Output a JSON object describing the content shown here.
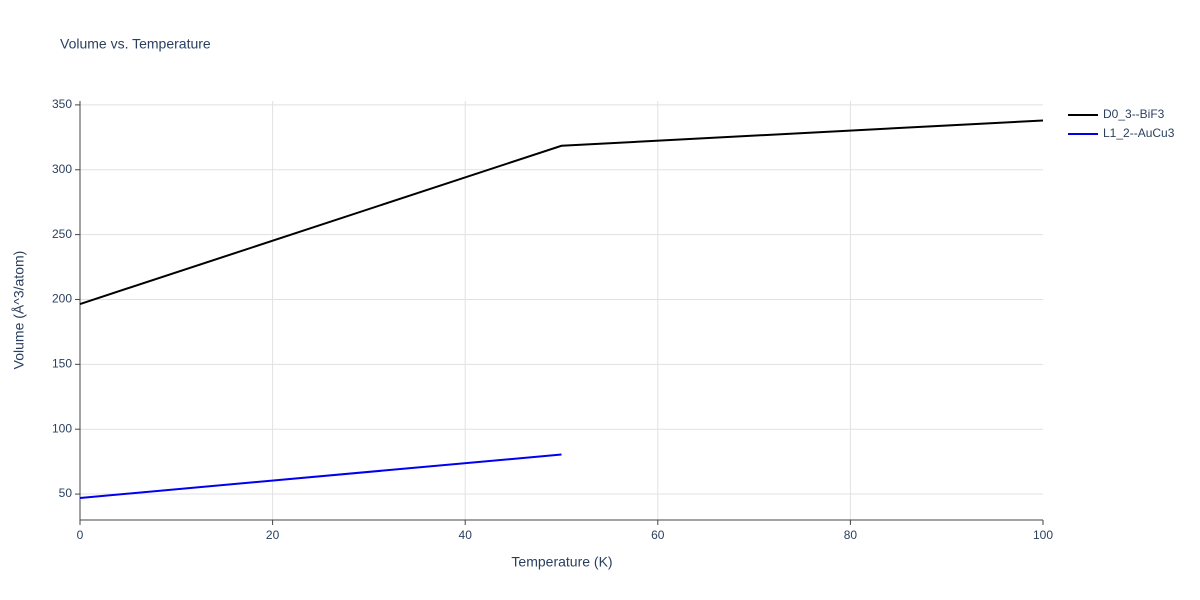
{
  "chart_data": {
    "type": "line",
    "title": "Volume vs. Temperature",
    "x_label": "Temperature (K)",
    "y_label": "Volume (Å^3/atom)",
    "series": [
      {
        "name": "D0_3--BiF3",
        "color": "#000000",
        "x": [
          0,
          50,
          100
        ],
        "values": [
          196.5,
          318.5,
          338
        ]
      },
      {
        "name": "L1_2--AuCu3",
        "color": "#0000ee",
        "x": [
          0,
          50
        ],
        "values": [
          47,
          80.5
        ]
      }
    ],
    "xlim": [
      0,
      100
    ],
    "xticks": [
      0,
      20,
      40,
      60,
      80,
      100
    ],
    "ylim": [
      30,
      353
    ],
    "yticks": [
      50,
      100,
      150,
      200,
      250,
      300,
      350
    ],
    "grid": true,
    "legend": "outside-right"
  }
}
